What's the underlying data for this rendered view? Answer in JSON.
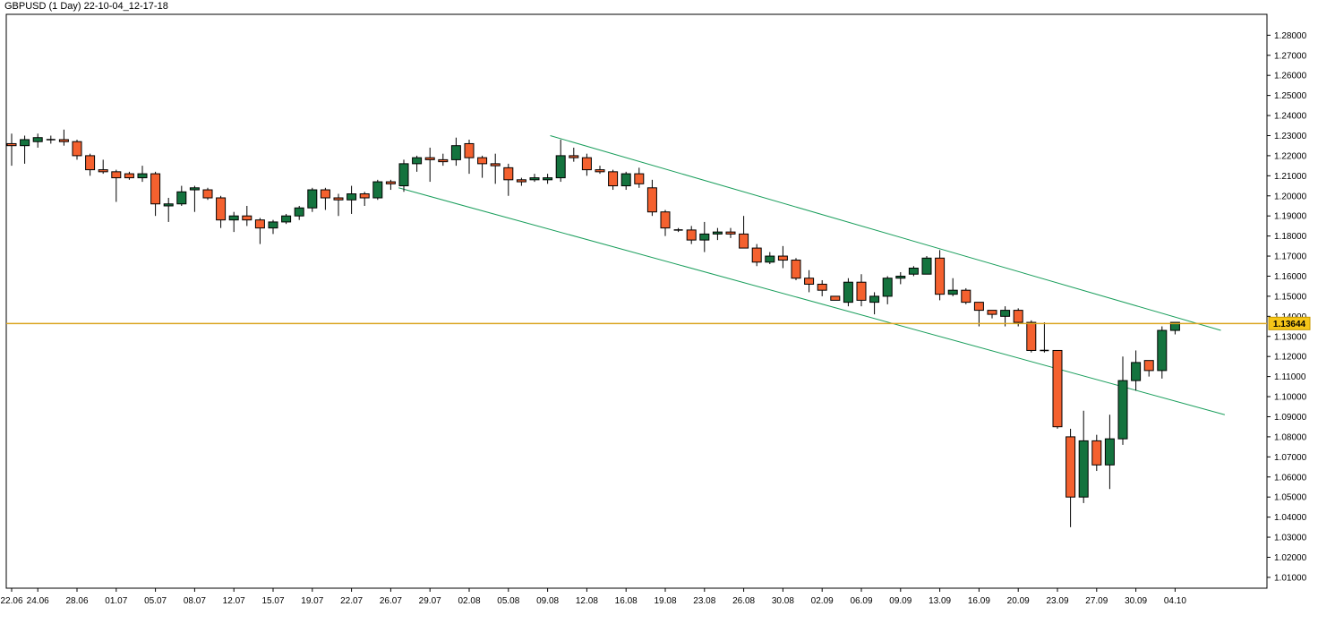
{
  "chart_data": {
    "type": "candlestick",
    "title": "GBPUSD (1 Day) 22-10-04_12-17-18",
    "ylim": [
      1.0,
      1.285
    ],
    "y_ticks": [
      "1.28000",
      "1.27000",
      "1.26000",
      "1.25000",
      "1.24000",
      "1.23000",
      "1.22000",
      "1.21000",
      "1.20000",
      "1.19000",
      "1.18000",
      "1.17000",
      "1.16000",
      "1.15000",
      "1.14000",
      "1.13000",
      "1.12000",
      "1.11000",
      "1.10000",
      "1.09000",
      "1.08000",
      "1.07000",
      "1.06000",
      "1.05000",
      "1.04000",
      "1.03000",
      "1.02000",
      "1.01000"
    ],
    "x_ticks": [
      {
        "i": 0,
        "label": "22.06"
      },
      {
        "i": 2,
        "label": "24.06"
      },
      {
        "i": 5,
        "label": "28.06"
      },
      {
        "i": 8,
        "label": "01.07"
      },
      {
        "i": 11,
        "label": "05.07"
      },
      {
        "i": 14,
        "label": "08.07"
      },
      {
        "i": 17,
        "label": "12.07"
      },
      {
        "i": 20,
        "label": "15.07"
      },
      {
        "i": 23,
        "label": "19.07"
      },
      {
        "i": 26,
        "label": "22.07"
      },
      {
        "i": 29,
        "label": "26.07"
      },
      {
        "i": 32,
        "label": "29.07"
      },
      {
        "i": 35,
        "label": "02.08"
      },
      {
        "i": 38,
        "label": "05.08"
      },
      {
        "i": 41,
        "label": "09.08"
      },
      {
        "i": 44,
        "label": "12.08"
      },
      {
        "i": 47,
        "label": "16.08"
      },
      {
        "i": 50,
        "label": "19.08"
      },
      {
        "i": 53,
        "label": "23.08"
      },
      {
        "i": 56,
        "label": "26.08"
      },
      {
        "i": 59,
        "label": "30.08"
      },
      {
        "i": 62,
        "label": "02.09"
      },
      {
        "i": 65,
        "label": "06.09"
      },
      {
        "i": 68,
        "label": "09.09"
      },
      {
        "i": 71,
        "label": "13.09"
      },
      {
        "i": 74,
        "label": "16.09"
      },
      {
        "i": 77,
        "label": "20.09"
      },
      {
        "i": 80,
        "label": "23.09"
      },
      {
        "i": 83,
        "label": "27.09"
      },
      {
        "i": 86,
        "label": "30.09"
      },
      {
        "i": 89,
        "label": "04.10"
      }
    ],
    "series": [
      {
        "candles": [
          [
            1.226,
            1.231,
            1.215,
            1.225
          ],
          [
            1.225,
            1.23,
            1.216,
            1.228
          ],
          [
            1.227,
            1.231,
            1.224,
            1.229
          ],
          [
            1.228,
            1.23,
            1.226,
            1.228
          ],
          [
            1.228,
            1.233,
            1.225,
            1.227
          ],
          [
            1.227,
            1.228,
            1.218,
            1.22
          ],
          [
            1.22,
            1.221,
            1.21,
            1.213
          ],
          [
            1.213,
            1.218,
            1.211,
            1.212
          ],
          [
            1.212,
            1.213,
            1.197,
            1.209
          ],
          [
            1.211,
            1.212,
            1.208,
            1.209
          ],
          [
            1.209,
            1.215,
            1.207,
            1.211
          ],
          [
            1.211,
            1.212,
            1.19,
            1.196
          ],
          [
            1.195,
            1.199,
            1.187,
            1.196
          ],
          [
            1.196,
            1.205,
            1.195,
            1.202
          ],
          [
            1.203,
            1.205,
            1.192,
            1.204
          ],
          [
            1.203,
            1.204,
            1.198,
            1.199
          ],
          [
            1.199,
            1.2,
            1.184,
            1.188
          ],
          [
            1.188,
            1.192,
            1.182,
            1.19
          ],
          [
            1.19,
            1.195,
            1.185,
            1.188
          ],
          [
            1.188,
            1.189,
            1.176,
            1.184
          ],
          [
            1.184,
            1.188,
            1.181,
            1.187
          ],
          [
            1.187,
            1.191,
            1.186,
            1.19
          ],
          [
            1.19,
            1.195,
            1.188,
            1.194
          ],
          [
            1.194,
            1.204,
            1.192,
            1.203
          ],
          [
            1.203,
            1.204,
            1.193,
            1.199
          ],
          [
            1.199,
            1.201,
            1.19,
            1.198
          ],
          [
            1.198,
            1.205,
            1.191,
            1.201
          ],
          [
            1.201,
            1.202,
            1.195,
            1.199
          ],
          [
            1.199,
            1.208,
            1.198,
            1.207
          ],
          [
            1.207,
            1.208,
            1.203,
            1.206
          ],
          [
            1.205,
            1.218,
            1.202,
            1.216
          ],
          [
            1.216,
            1.22,
            1.212,
            1.219
          ],
          [
            1.219,
            1.224,
            1.207,
            1.218
          ],
          [
            1.218,
            1.221,
            1.215,
            1.217
          ],
          [
            1.218,
            1.229,
            1.215,
            1.225
          ],
          [
            1.226,
            1.228,
            1.211,
            1.219
          ],
          [
            1.219,
            1.22,
            1.209,
            1.216
          ],
          [
            1.216,
            1.221,
            1.206,
            1.215
          ],
          [
            1.214,
            1.216,
            1.2,
            1.208
          ],
          [
            1.208,
            1.209,
            1.205,
            1.207
          ],
          [
            1.208,
            1.211,
            1.207,
            1.209
          ],
          [
            1.208,
            1.211,
            1.206,
            1.209
          ],
          [
            1.209,
            1.228,
            1.207,
            1.22
          ],
          [
            1.22,
            1.224,
            1.217,
            1.219
          ],
          [
            1.219,
            1.221,
            1.21,
            1.213
          ],
          [
            1.213,
            1.215,
            1.211,
            1.212
          ],
          [
            1.212,
            1.213,
            1.203,
            1.205
          ],
          [
            1.205,
            1.212,
            1.203,
            1.211
          ],
          [
            1.211,
            1.214,
            1.204,
            1.206
          ],
          [
            1.204,
            1.208,
            1.19,
            1.192
          ],
          [
            1.192,
            1.193,
            1.18,
            1.184
          ],
          [
            1.183,
            1.184,
            1.182,
            1.183
          ],
          [
            1.183,
            1.185,
            1.176,
            1.178
          ],
          [
            1.178,
            1.187,
            1.172,
            1.181
          ],
          [
            1.181,
            1.184,
            1.178,
            1.182
          ],
          [
            1.182,
            1.184,
            1.179,
            1.181
          ],
          [
            1.181,
            1.19,
            1.176,
            1.174
          ],
          [
            1.174,
            1.176,
            1.165,
            1.167
          ],
          [
            1.167,
            1.172,
            1.166,
            1.17
          ],
          [
            1.17,
            1.175,
            1.164,
            1.168
          ],
          [
            1.168,
            1.169,
            1.158,
            1.159
          ],
          [
            1.159,
            1.163,
            1.152,
            1.156
          ],
          [
            1.156,
            1.158,
            1.15,
            1.153
          ],
          [
            1.15,
            1.15,
            1.148,
            1.148
          ],
          [
            1.147,
            1.159,
            1.145,
            1.157
          ],
          [
            1.157,
            1.161,
            1.145,
            1.148
          ],
          [
            1.147,
            1.152,
            1.141,
            1.15
          ],
          [
            1.15,
            1.16,
            1.146,
            1.159
          ],
          [
            1.159,
            1.162,
            1.156,
            1.16
          ],
          [
            1.161,
            1.165,
            1.16,
            1.164
          ],
          [
            1.161,
            1.17,
            1.161,
            1.169
          ],
          [
            1.169,
            1.173,
            1.148,
            1.151
          ],
          [
            1.151,
            1.159,
            1.15,
            1.153
          ],
          [
            1.153,
            1.154,
            1.146,
            1.147
          ],
          [
            1.147,
            1.147,
            1.135,
            1.143
          ],
          [
            1.143,
            1.143,
            1.139,
            1.141
          ],
          [
            1.14,
            1.145,
            1.135,
            1.143
          ],
          [
            1.143,
            1.144,
            1.135,
            1.137
          ],
          [
            1.137,
            1.138,
            1.122,
            1.123
          ],
          [
            1.123,
            1.137,
            1.122,
            1.123
          ],
          [
            1.123,
            1.123,
            1.084,
            1.085
          ],
          [
            1.08,
            1.084,
            1.035,
            1.05
          ],
          [
            1.05,
            1.093,
            1.047,
            1.078
          ],
          [
            1.078,
            1.081,
            1.063,
            1.066
          ],
          [
            1.066,
            1.091,
            1.054,
            1.079
          ],
          [
            1.079,
            1.12,
            1.076,
            1.108
          ],
          [
            1.108,
            1.123,
            1.103,
            1.117
          ],
          [
            1.118,
            1.118,
            1.11,
            1.113
          ],
          [
            1.113,
            1.135,
            1.109,
            1.133
          ],
          [
            1.133,
            1.137,
            1.131,
            1.137
          ]
        ]
      }
    ],
    "trendlines": [
      {
        "from": {
          "i": 41.2,
          "v": 1.23
        },
        "to": {
          "i": 92.5,
          "v": 1.133
        }
      },
      {
        "from": {
          "i": 29.6,
          "v": 1.204
        },
        "to": {
          "i": 92.8,
          "v": 1.091
        }
      }
    ],
    "hline": {
      "value": 1.13644,
      "label": "1.13644",
      "color": "#daa520"
    },
    "colors": {
      "bull": "#14733e",
      "bear": "#f4612f",
      "trend": "#1a9e5c",
      "axis": "#000000"
    }
  }
}
